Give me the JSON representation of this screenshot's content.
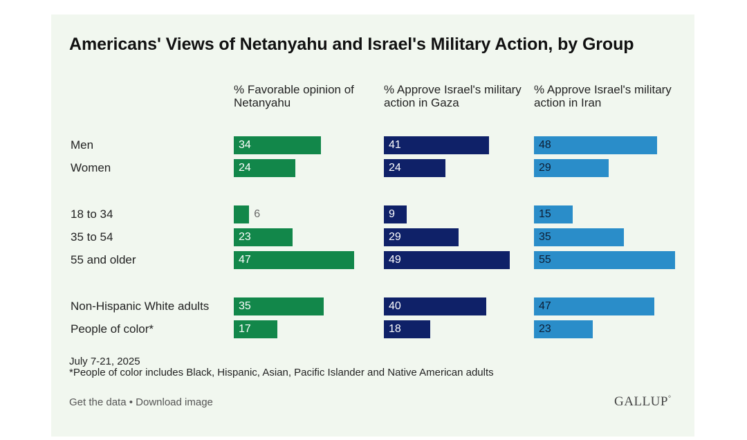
{
  "chart_data": {
    "type": "bar",
    "title": "Americans' Views of Netanyahu and Israel's Military Action, by Group",
    "xlim": [
      0,
      55
    ],
    "categories": [
      "Men",
      "Women",
      "18 to 34",
      "35 to 54",
      "55 and older",
      "Non-Hispanic White adults",
      "People of color*"
    ],
    "category_groups": [
      [
        0,
        1
      ],
      [
        2,
        3,
        4
      ],
      [
        5,
        6
      ]
    ],
    "series": [
      {
        "name": "% Favorable opinion of Netanyahu",
        "color": "#12874a",
        "values": [
          34,
          24,
          6,
          23,
          47,
          35,
          17
        ]
      },
      {
        "name": "% Approve Israel's military action in Gaza",
        "color": "#0f2168",
        "values": [
          41,
          24,
          9,
          29,
          49,
          40,
          18
        ]
      },
      {
        "name": "% Approve Israel's military action in Iran",
        "color": "#2a8dc9",
        "values": [
          48,
          29,
          15,
          35,
          55,
          47,
          23
        ]
      }
    ]
  },
  "notes": {
    "date": "July 7-21, 2025",
    "footnote": "*People of color includes Black, Hispanic, Asian, Pacific Islander and Native American adults"
  },
  "footer": {
    "get_data": "Get the data",
    "separator": " • ",
    "download": "Download image"
  },
  "brand": {
    "logo_text": "GALLUP",
    "logo_mark": "°"
  }
}
